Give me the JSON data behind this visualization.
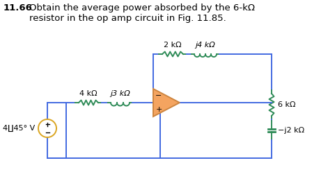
{
  "title_bold": "11.66",
  "title_text": "Obtain the average power absorbed by the 6-kΩ\nresistor in the op amp circuit in Fig. 11.85.",
  "bg_color": "#ffffff",
  "resistor_color": "#2E8B57",
  "inductor_color": "#2E8B57",
  "wire_color": "#4169E1",
  "opamp_face": "#F4A460",
  "opamp_edge": "#CD853F",
  "source_color": "#DAA520",
  "component_labels": {
    "R1": "4 kΩ",
    "L1": "j3 kΩ",
    "R2": "2 kΩ",
    "L2": "j4 kΩ",
    "R3": "6 kΩ",
    "C1": "−j2 kΩ",
    "Vs": "4∐45° V"
  },
  "title_fontsize": 9.5,
  "label_fontsize": 8.0
}
